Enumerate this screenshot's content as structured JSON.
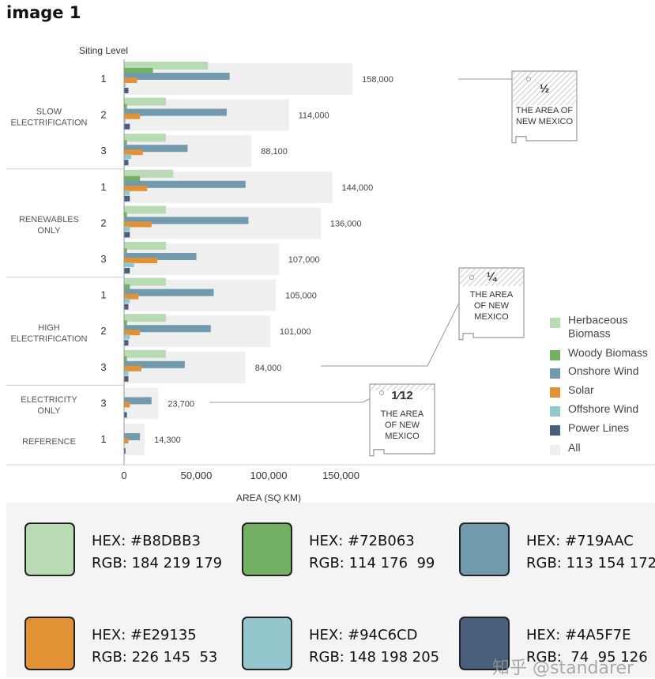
{
  "image_label": "image 1",
  "chart_data": {
    "type": "bar",
    "orientation": "horizontal",
    "row_axis_title": "Siting Level",
    "xlabel": "AREA (SQ KM)",
    "xlim": [
      0,
      200000
    ],
    "xticks": [
      0,
      50000,
      100000,
      150000
    ],
    "xtick_labels": [
      "0",
      "50,000",
      "100,000",
      "150,000"
    ],
    "groups": [
      {
        "name": "SLOW\nELECTRIFICATION",
        "rows": [
          {
            "level": "1",
            "total": 158000,
            "total_label": "158,000",
            "values": [
              58000,
              20000,
              73000,
              9000,
              1000,
              3000
            ]
          },
          {
            "level": "2",
            "total": 114000,
            "total_label": "114,000",
            "values": [
              29000,
              2000,
              71000,
              11000,
              1000,
              4000
            ]
          },
          {
            "level": "3",
            "total": 88100,
            "total_label": "88,100",
            "values": [
              29000,
              2000,
              44000,
              13000,
              5000,
              3000
            ]
          }
        ]
      },
      {
        "name": "RENEWABLES\nONLY",
        "rows": [
          {
            "level": "1",
            "total": 144000,
            "total_label": "144,000",
            "values": [
              34000,
              11000,
              84000,
              16000,
              4000,
              4000
            ]
          },
          {
            "level": "2",
            "total": 136000,
            "total_label": "136,000",
            "values": [
              29000,
              2000,
              86000,
              19000,
              4000,
              4000
            ]
          },
          {
            "level": "3",
            "total": 107000,
            "total_label": "107,000",
            "values": [
              29000,
              2000,
              50000,
              23000,
              7000,
              4000
            ]
          }
        ]
      },
      {
        "name": "HIGH\nELECTRIFICATION",
        "rows": [
          {
            "level": "1",
            "total": 105000,
            "total_label": "105,000",
            "values": [
              29000,
              4000,
              62000,
              10000,
              4000,
              3000
            ]
          },
          {
            "level": "2",
            "total": 101000,
            "total_label": "101,000",
            "values": [
              29000,
              2000,
              60000,
              11000,
              4000,
              3000
            ]
          },
          {
            "level": "3",
            "total": 84000,
            "total_label": "84,000",
            "values": [
              29000,
              2000,
              42000,
              12000,
              3000,
              3000
            ]
          }
        ]
      },
      {
        "name": "ELECTRICITY\nONLY",
        "rows": [
          {
            "level": "3",
            "total": 23700,
            "total_label": "23,700",
            "values": [
              0,
              0,
              19000,
              4000,
              0,
              2000
            ]
          }
        ]
      },
      {
        "name": "REFERENCE",
        "rows": [
          {
            "level": "1",
            "total": 14300,
            "total_label": "14,300",
            "values": [
              0,
              0,
              11000,
              3000,
              0,
              1000
            ]
          }
        ]
      }
    ],
    "series": [
      {
        "name": "Herbaceous\nBiomass",
        "color": "#B8DBB3"
      },
      {
        "name": "Woody Biomass",
        "color": "#72B063"
      },
      {
        "name": "Onshore Wind",
        "color": "#719AAC"
      },
      {
        "name": "Solar",
        "color": "#E29135"
      },
      {
        "name": "Offshore Wind",
        "color": "#94C6CD"
      },
      {
        "name": "Power Lines",
        "color": "#4A5F7E"
      },
      {
        "name": "All",
        "color": "#EFEFEF"
      }
    ],
    "legend_position": "right",
    "annotations": [
      {
        "fraction": "½",
        "text": "THE AREA OF\nNEW MEXICO",
        "points_to": 158000
      },
      {
        "fraction": "¼",
        "text": "THE AREA\nOF NEW\nMEXICO",
        "points_to": 84000
      },
      {
        "fraction": "1⁄12",
        "text": "THE AREA\nOF NEW\nMEXICO",
        "points_to": 23700
      }
    ]
  },
  "color_swatches": [
    {
      "hex_label": "HEX: #B8DBB3",
      "rgb_label": "RGB: 184 219 179",
      "color": "#B8DBB3"
    },
    {
      "hex_label": "HEX: #72B063",
      "rgb_label": "RGB: 114 176  99",
      "color": "#72B063"
    },
    {
      "hex_label": "HEX: #719AAC",
      "rgb_label": "RGB: 113 154 172",
      "color": "#719AAC"
    },
    {
      "hex_label": "HEX: #E29135",
      "rgb_label": "RGB: 226 145  53",
      "color": "#E29135"
    },
    {
      "hex_label": "HEX: #94C6CD",
      "rgb_label": "RGB: 148 198 205",
      "color": "#94C6CD"
    },
    {
      "hex_label": "HEX: #4A5F7E",
      "rgb_label": "RGB:  74  95 126",
      "color": "#4A5F7E"
    }
  ],
  "watermark": "知乎 @standarer"
}
